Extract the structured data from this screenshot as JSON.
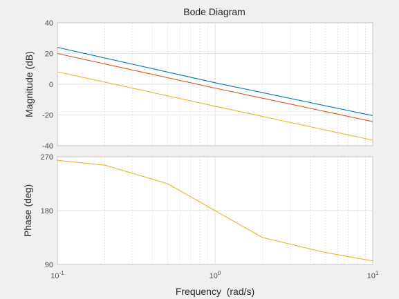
{
  "chart_data": {
    "type": "line",
    "title": "Bode Diagram",
    "xlabel": "Frequency  (rad/s)",
    "x_scale": "log",
    "xlim": [
      0.1,
      10
    ],
    "x_ticks": [
      {
        "value": 0.1,
        "base": "10",
        "exp": "-1"
      },
      {
        "value": 1,
        "base": "10",
        "exp": "0"
      },
      {
        "value": 10,
        "base": "10",
        "exp": "1"
      }
    ],
    "grid": true,
    "magnitude": {
      "ylabel": "Magnitude (dB)",
      "ylim": [
        -40,
        40
      ],
      "y_ticks": [
        40,
        20,
        0,
        -20,
        -40
      ],
      "series": [
        {
          "color": "#0072bd",
          "x": [
            0.1,
            1,
            10
          ],
          "y": [
            24,
            1,
            -20.4
          ]
        },
        {
          "color": "#d95319",
          "x": [
            0.1,
            1,
            10
          ],
          "y": [
            20,
            -2.5,
            -24.3
          ]
        },
        {
          "color": "#edb120",
          "x": [
            0.1,
            1,
            10
          ],
          "y": [
            8.1,
            -14.3,
            -36.4
          ]
        }
      ]
    },
    "phase": {
      "ylabel": "Phase (deg)",
      "ylim": [
        90,
        270
      ],
      "y_ticks": [
        270,
        180,
        90
      ],
      "series": [
        {
          "color": "#edb120",
          "x": [
            0.1,
            0.2,
            0.5,
            1,
            2,
            5,
            10
          ],
          "y": [
            264,
            256,
            225,
            180,
            135,
            110,
            96
          ]
        }
      ]
    }
  }
}
